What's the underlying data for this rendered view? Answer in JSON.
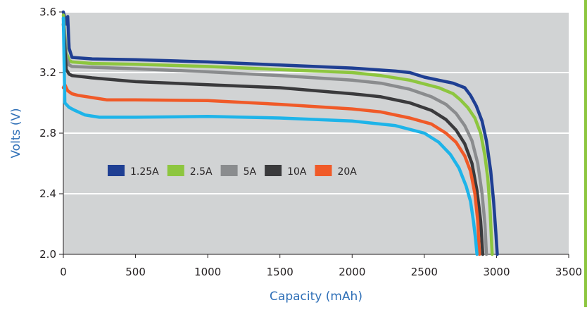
{
  "chart_data": {
    "type": "line",
    "title": "",
    "xlabel": "Capacity (mAh)",
    "ylabel": "Volts (V)",
    "xlim": [
      0,
      3500
    ],
    "ylim": [
      2.0,
      3.6
    ],
    "x_ticks": [
      "0",
      "500",
      "1000",
      "1500",
      "2000",
      "2500",
      "3000",
      "3500"
    ],
    "y_ticks": [
      "2.0",
      "2.4",
      "2.8",
      "3.2",
      "3.6"
    ],
    "grid": "horizontal",
    "legend_position": "center-left",
    "background_color": "#d1d3d4",
    "axis_label_color": "#2e6fb7",
    "border_accent_color": "#8dc63f",
    "series": [
      {
        "name": "1.25A",
        "color": "#1f3f93",
        "points": [
          [
            0,
            3.6
          ],
          [
            20,
            3.52
          ],
          [
            30,
            3.57
          ],
          [
            40,
            3.36
          ],
          [
            60,
            3.3
          ],
          [
            200,
            3.29
          ],
          [
            500,
            3.285
          ],
          [
            1000,
            3.27
          ],
          [
            1500,
            3.25
          ],
          [
            2000,
            3.23
          ],
          [
            2300,
            3.21
          ],
          [
            2400,
            3.2
          ],
          [
            2500,
            3.17
          ],
          [
            2600,
            3.15
          ],
          [
            2700,
            3.13
          ],
          [
            2780,
            3.1
          ],
          [
            2820,
            3.05
          ],
          [
            2860,
            2.98
          ],
          [
            2900,
            2.88
          ],
          [
            2930,
            2.75
          ],
          [
            2960,
            2.55
          ],
          [
            2980,
            2.35
          ],
          [
            2995,
            2.15
          ],
          [
            3005,
            2.0
          ]
        ]
      },
      {
        "name": "2.5A",
        "color": "#8dc63f",
        "points": [
          [
            0,
            3.58
          ],
          [
            20,
            3.33
          ],
          [
            40,
            3.28
          ],
          [
            60,
            3.27
          ],
          [
            200,
            3.26
          ],
          [
            500,
            3.255
          ],
          [
            1000,
            3.24
          ],
          [
            1500,
            3.22
          ],
          [
            2000,
            3.2
          ],
          [
            2200,
            3.18
          ],
          [
            2400,
            3.15
          ],
          [
            2600,
            3.1
          ],
          [
            2700,
            3.06
          ],
          [
            2750,
            3.02
          ],
          [
            2800,
            2.97
          ],
          [
            2850,
            2.9
          ],
          [
            2890,
            2.8
          ],
          [
            2920,
            2.65
          ],
          [
            2940,
            2.5
          ],
          [
            2955,
            2.3
          ],
          [
            2965,
            2.1
          ],
          [
            2970,
            2.0
          ]
        ]
      },
      {
        "name": "5A",
        "color": "#8a8c8e",
        "points": [
          [
            0,
            3.56
          ],
          [
            20,
            3.3
          ],
          [
            40,
            3.25
          ],
          [
            60,
            3.24
          ],
          [
            200,
            3.235
          ],
          [
            500,
            3.225
          ],
          [
            1000,
            3.205
          ],
          [
            1500,
            3.18
          ],
          [
            2000,
            3.15
          ],
          [
            2200,
            3.13
          ],
          [
            2400,
            3.09
          ],
          [
            2550,
            3.04
          ],
          [
            2650,
            2.99
          ],
          [
            2720,
            2.93
          ],
          [
            2780,
            2.85
          ],
          [
            2830,
            2.75
          ],
          [
            2870,
            2.6
          ],
          [
            2900,
            2.4
          ],
          [
            2920,
            2.2
          ],
          [
            2930,
            2.0
          ]
        ]
      },
      {
        "name": "10A",
        "color": "#3a3a3c",
        "points": [
          [
            0,
            3.52
          ],
          [
            20,
            3.22
          ],
          [
            40,
            3.19
          ],
          [
            60,
            3.18
          ],
          [
            200,
            3.165
          ],
          [
            500,
            3.14
          ],
          [
            1000,
            3.12
          ],
          [
            1500,
            3.1
          ],
          [
            2000,
            3.06
          ],
          [
            2200,
            3.04
          ],
          [
            2400,
            3.0
          ],
          [
            2550,
            2.95
          ],
          [
            2650,
            2.89
          ],
          [
            2720,
            2.82
          ],
          [
            2780,
            2.73
          ],
          [
            2830,
            2.6
          ],
          [
            2865,
            2.42
          ],
          [
            2890,
            2.22
          ],
          [
            2905,
            2.0
          ]
        ]
      },
      {
        "name": "20A",
        "color": "#f05a28",
        "points": [
          [
            0,
            3.1
          ],
          [
            10,
            3.12
          ],
          [
            30,
            3.08
          ],
          [
            60,
            3.06
          ],
          [
            100,
            3.05
          ],
          [
            200,
            3.035
          ],
          [
            300,
            3.02
          ],
          [
            500,
            3.02
          ],
          [
            1000,
            3.015
          ],
          [
            1500,
            2.99
          ],
          [
            2000,
            2.96
          ],
          [
            2200,
            2.94
          ],
          [
            2400,
            2.9
          ],
          [
            2550,
            2.86
          ],
          [
            2650,
            2.8
          ],
          [
            2720,
            2.74
          ],
          [
            2780,
            2.65
          ],
          [
            2820,
            2.55
          ],
          [
            2850,
            2.4
          ],
          [
            2870,
            2.22
          ],
          [
            2882,
            2.0
          ]
        ]
      },
      {
        "name": "",
        "color": "#1eb4e9",
        "points": [
          [
            0,
            3.56
          ],
          [
            10,
            3.0
          ],
          [
            40,
            2.97
          ],
          [
            80,
            2.95
          ],
          [
            150,
            2.92
          ],
          [
            250,
            2.905
          ],
          [
            500,
            2.905
          ],
          [
            1000,
            2.91
          ],
          [
            1500,
            2.9
          ],
          [
            2000,
            2.88
          ],
          [
            2300,
            2.85
          ],
          [
            2500,
            2.8
          ],
          [
            2600,
            2.74
          ],
          [
            2680,
            2.66
          ],
          [
            2740,
            2.57
          ],
          [
            2790,
            2.45
          ],
          [
            2820,
            2.35
          ],
          [
            2840,
            2.22
          ],
          [
            2855,
            2.1
          ],
          [
            2865,
            2.0
          ]
        ]
      }
    ]
  }
}
